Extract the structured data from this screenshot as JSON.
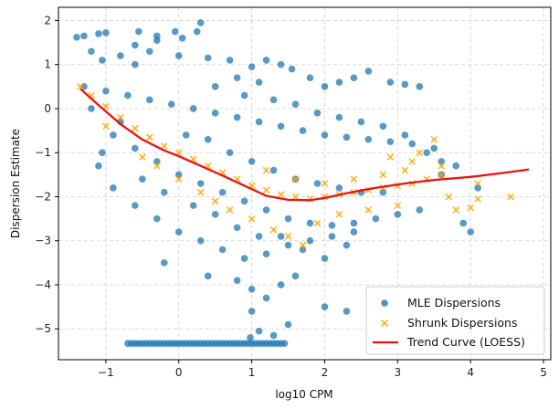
{
  "chart_data": {
    "type": "scatter",
    "xlabel": "log10 CPM",
    "ylabel": "Dispersion Estimate",
    "xlim": [
      -1.65,
      5.1
    ],
    "ylim": [
      -5.7,
      2.3
    ],
    "xticks": [
      -1,
      0,
      1,
      2,
      3,
      4,
      5
    ],
    "yticks": [
      -5,
      -4,
      -3,
      -2,
      -1,
      0,
      1,
      2
    ],
    "grid": true,
    "legend_position": "lower-right",
    "colors": {
      "mle": "#1f77b4",
      "shrunk": "#ffa500",
      "trend": "#ee1111"
    },
    "series": [
      {
        "name": "MLE Dispersions",
        "marker": "circle",
        "points": [
          [
            -1.4,
            1.62
          ],
          [
            -1.3,
            1.65
          ],
          [
            -1.1,
            1.7
          ],
          [
            -1.0,
            1.72
          ],
          [
            -0.55,
            1.75
          ],
          [
            -0.6,
            1.44
          ],
          [
            -0.3,
            1.55
          ],
          [
            -0.3,
            1.65
          ],
          [
            -0.05,
            1.75
          ],
          [
            0.05,
            1.6
          ],
          [
            0.3,
            1.95
          ],
          [
            0.25,
            1.75
          ],
          [
            -1.2,
            1.3
          ],
          [
            -1.05,
            1.1
          ],
          [
            -0.8,
            1.2
          ],
          [
            -0.6,
            1.0
          ],
          [
            -0.4,
            1.3
          ],
          [
            0.0,
            1.2
          ],
          [
            0.4,
            1.15
          ],
          [
            0.7,
            1.1
          ],
          [
            1.0,
            0.95
          ],
          [
            1.2,
            1.1
          ],
          [
            1.4,
            1.0
          ],
          [
            1.55,
            0.9
          ],
          [
            1.8,
            0.7
          ],
          [
            2.0,
            0.5
          ],
          [
            2.2,
            0.6
          ],
          [
            2.4,
            0.7
          ],
          [
            2.6,
            0.85
          ],
          [
            2.9,
            0.6
          ],
          [
            3.1,
            0.55
          ],
          [
            3.3,
            0.5
          ],
          [
            1.1,
            0.6
          ],
          [
            0.8,
            0.7
          ],
          [
            -1.3,
            0.5
          ],
          [
            -1.0,
            0.4
          ],
          [
            -0.7,
            0.3
          ],
          [
            -0.4,
            0.2
          ],
          [
            -0.1,
            0.1
          ],
          [
            0.2,
            0.0
          ],
          [
            0.5,
            -0.1
          ],
          [
            0.8,
            -0.2
          ],
          [
            1.1,
            -0.3
          ],
          [
            1.4,
            -0.4
          ],
          [
            1.7,
            -0.5
          ],
          [
            2.0,
            -0.6
          ],
          [
            2.3,
            -0.65
          ],
          [
            2.6,
            -0.7
          ],
          [
            2.9,
            -0.75
          ],
          [
            3.2,
            -0.8
          ],
          [
            3.5,
            -0.9
          ],
          [
            -0.9,
            -0.6
          ],
          [
            -0.6,
            -0.9
          ],
          [
            -0.3,
            -1.2
          ],
          [
            0.0,
            -1.5
          ],
          [
            0.3,
            -1.7
          ],
          [
            0.6,
            -1.9
          ],
          [
            0.9,
            -2.1
          ],
          [
            1.2,
            -2.3
          ],
          [
            1.5,
            -2.5
          ],
          [
            1.8,
            -2.6
          ],
          [
            2.1,
            -2.65
          ],
          [
            2.4,
            -2.6
          ],
          [
            2.7,
            -2.5
          ],
          [
            3.0,
            -2.4
          ],
          [
            3.3,
            -2.3
          ],
          [
            -0.6,
            -2.2
          ],
          [
            -0.3,
            -2.5
          ],
          [
            0.0,
            -2.8
          ],
          [
            0.3,
            -3.0
          ],
          [
            0.6,
            -3.2
          ],
          [
            0.9,
            -3.4
          ],
          [
            1.2,
            -3.3
          ],
          [
            1.5,
            -3.1
          ],
          [
            1.8,
            -3.0
          ],
          [
            2.1,
            -2.9
          ],
          [
            2.4,
            -2.8
          ],
          [
            -0.2,
            -3.5
          ],
          [
            0.4,
            -3.8
          ],
          [
            0.8,
            -3.9
          ],
          [
            1.0,
            -4.1
          ],
          [
            1.2,
            -4.3
          ],
          [
            1.4,
            -4.0
          ],
          [
            1.6,
            -3.8
          ],
          [
            1.0,
            -4.6
          ],
          [
            1.1,
            -5.05
          ],
          [
            0.98,
            -5.2
          ],
          [
            1.3,
            -5.15
          ],
          [
            1.5,
            -4.9
          ],
          [
            2.0,
            -4.5
          ],
          [
            2.3,
            -4.6
          ],
          [
            3.9,
            -2.6
          ],
          [
            4.0,
            -2.8
          ],
          [
            4.1,
            -1.8
          ],
          [
            3.6,
            -1.5
          ],
          [
            3.8,
            -1.3
          ],
          [
            -1.1,
            -1.3
          ],
          [
            -0.9,
            -1.8
          ],
          [
            -1.05,
            -1.0
          ],
          [
            -0.8,
            -0.3
          ],
          [
            -1.2,
            0.0
          ],
          [
            0.5,
            0.5
          ],
          [
            0.9,
            0.3
          ],
          [
            1.3,
            0.2
          ],
          [
            1.6,
            0.1
          ],
          [
            1.9,
            -0.1
          ],
          [
            2.2,
            -0.2
          ],
          [
            2.5,
            -0.3
          ],
          [
            2.8,
            -0.4
          ],
          [
            3.1,
            -0.6
          ],
          [
            3.4,
            -1.0
          ],
          [
            3.6,
            -1.2
          ],
          [
            0.1,
            -0.6
          ],
          [
            0.4,
            -0.7
          ],
          [
            0.7,
            -1.0
          ],
          [
            1.0,
            -1.2
          ],
          [
            1.3,
            -1.4
          ],
          [
            1.6,
            -1.6
          ],
          [
            1.9,
            -1.7
          ],
          [
            2.2,
            -1.8
          ],
          [
            2.5,
            -1.9
          ],
          [
            2.8,
            -1.9
          ],
          [
            -0.5,
            -1.6
          ],
          [
            -0.2,
            -1.9
          ],
          [
            0.2,
            -2.2
          ],
          [
            0.5,
            -2.4
          ],
          [
            0.8,
            -2.7
          ],
          [
            1.1,
            -2.9
          ],
          [
            1.4,
            -2.9
          ],
          [
            1.7,
            -3.2
          ],
          [
            2.0,
            -3.4
          ],
          [
            2.3,
            -3.1
          ]
        ]
      },
      {
        "name": "Shrunk Dispersions",
        "marker": "x",
        "points": [
          [
            -1.35,
            0.5
          ],
          [
            -1.2,
            0.3
          ],
          [
            -1.0,
            0.05
          ],
          [
            -0.8,
            -0.2
          ],
          [
            -0.6,
            -0.45
          ],
          [
            -0.4,
            -0.65
          ],
          [
            -0.2,
            -0.85
          ],
          [
            0.0,
            -1.0
          ],
          [
            0.2,
            -1.15
          ],
          [
            0.4,
            -1.3
          ],
          [
            0.6,
            -1.45
          ],
          [
            0.8,
            -1.6
          ],
          [
            1.0,
            -1.75
          ],
          [
            1.2,
            -1.85
          ],
          [
            1.4,
            -1.95
          ],
          [
            1.6,
            -2.0
          ],
          [
            1.8,
            -2.05
          ],
          [
            2.0,
            -2.0
          ],
          [
            2.2,
            -1.95
          ],
          [
            2.4,
            -1.9
          ],
          [
            2.6,
            -1.85
          ],
          [
            2.8,
            -1.8
          ],
          [
            3.0,
            -1.75
          ],
          [
            3.2,
            -1.7
          ],
          [
            3.4,
            -1.6
          ],
          [
            3.6,
            -1.5
          ],
          [
            3.7,
            -2.0
          ],
          [
            3.8,
            -2.3
          ],
          [
            4.0,
            -2.25
          ],
          [
            4.1,
            -1.7
          ],
          [
            4.55,
            -2.0
          ],
          [
            4.1,
            -2.05
          ],
          [
            3.5,
            -0.7
          ],
          [
            3.3,
            -1.0
          ],
          [
            3.6,
            -1.3
          ],
          [
            -1.0,
            -0.4
          ],
          [
            -0.5,
            -1.1
          ],
          [
            0.0,
            -1.6
          ],
          [
            0.5,
            -2.1
          ],
          [
            1.0,
            -2.5
          ],
          [
            1.3,
            -2.75
          ],
          [
            1.5,
            -2.9
          ],
          [
            1.7,
            -3.1
          ],
          [
            0.7,
            -2.3
          ],
          [
            0.3,
            -1.9
          ],
          [
            -0.3,
            -1.3
          ],
          [
            1.2,
            -1.4
          ],
          [
            1.6,
            -1.6
          ],
          [
            2.0,
            -1.7
          ],
          [
            2.4,
            -1.6
          ],
          [
            2.8,
            -1.5
          ],
          [
            3.1,
            -1.4
          ],
          [
            2.2,
            -2.4
          ],
          [
            2.6,
            -2.3
          ],
          [
            3.0,
            -2.2
          ],
          [
            1.9,
            -2.6
          ],
          [
            2.9,
            -1.1
          ],
          [
            3.2,
            -1.2
          ]
        ]
      },
      {
        "name": "Trend Curve (LOESS)",
        "marker": "line",
        "points": [
          [
            -1.35,
            0.45
          ],
          [
            -1.1,
            0.08
          ],
          [
            -0.8,
            -0.35
          ],
          [
            -0.5,
            -0.7
          ],
          [
            -0.2,
            -0.95
          ],
          [
            0.0,
            -1.08
          ],
          [
            0.3,
            -1.3
          ],
          [
            0.6,
            -1.52
          ],
          [
            0.9,
            -1.75
          ],
          [
            1.2,
            -1.98
          ],
          [
            1.5,
            -2.07
          ],
          [
            1.8,
            -2.08
          ],
          [
            2.0,
            -2.03
          ],
          [
            2.3,
            -1.92
          ],
          [
            2.7,
            -1.8
          ],
          [
            3.1,
            -1.7
          ],
          [
            3.5,
            -1.62
          ],
          [
            4.0,
            -1.55
          ],
          [
            4.5,
            -1.45
          ],
          [
            4.8,
            -1.38
          ]
        ]
      }
    ],
    "outlier_rows": [
      {
        "note_series": "MLE Dispersions",
        "y": -5.33,
        "x_from": -0.7,
        "x_to": 1.45
      }
    ]
  }
}
